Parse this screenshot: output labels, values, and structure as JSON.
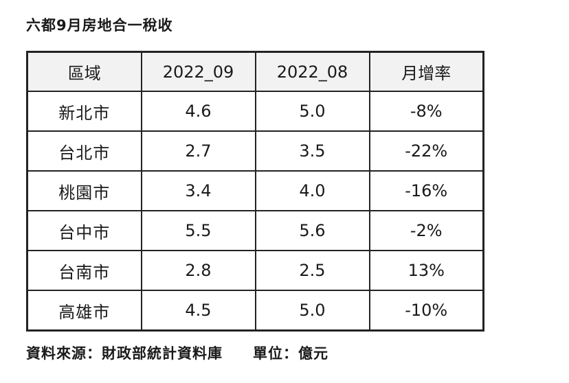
{
  "title": "六都9月房地合一稅收",
  "table": {
    "headers": [
      "區域",
      "2022_09",
      "2022_08",
      "月增率"
    ],
    "rows": [
      {
        "region": "新北市",
        "sep": "4.6",
        "aug": "5.0",
        "mom": "-8%"
      },
      {
        "region": "台北市",
        "sep": "2.7",
        "aug": "3.5",
        "mom": "-22%"
      },
      {
        "region": "桃園市",
        "sep": "3.4",
        "aug": "4.0",
        "mom": "-16%"
      },
      {
        "region": "台中市",
        "sep": "5.5",
        "aug": "5.6",
        "mom": "-2%"
      },
      {
        "region": "台南市",
        "sep": "2.8",
        "aug": "2.5",
        "mom": "13%"
      },
      {
        "region": "高雄市",
        "sep": "4.5",
        "aug": "5.0",
        "mom": "-10%"
      }
    ]
  },
  "footer": {
    "source": "資料來源：財政部統計資料庫",
    "unit": "單位：億元"
  },
  "colors": {
    "header_bg": "#f2f2f2",
    "border": "#222222",
    "text": "#1a1a1a"
  }
}
